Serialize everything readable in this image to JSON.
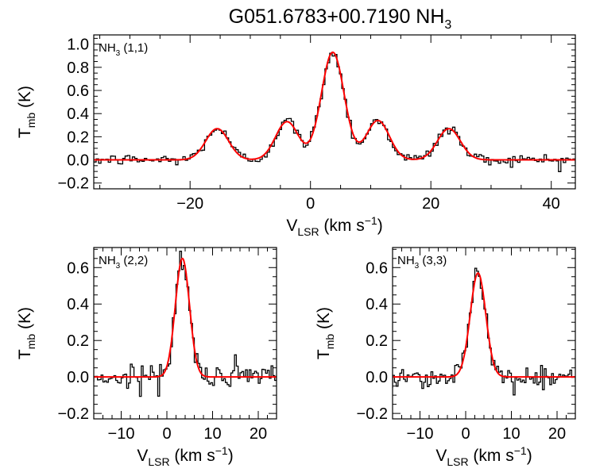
{
  "title": {
    "main": "G051.6783+00.7190 NH",
    "sub": "3"
  },
  "chart_data": [
    {
      "type": "line",
      "id": "p11",
      "annotation": {
        "main": "NH",
        "sub": "3",
        "rest": " (1,1)"
      },
      "xlabel": {
        "main": "V",
        "sub": "LSR",
        "rest": " (km s",
        "sup": "−1",
        "end": ")"
      },
      "ylabel": {
        "main": "T",
        "sub": "mb",
        "rest": " (K)"
      },
      "xlim": [
        -36,
        44
      ],
      "ylim": [
        -0.25,
        1.08
      ],
      "xticks": [
        -20,
        0,
        20,
        40
      ],
      "xtick_labels": [
        "−20",
        "0",
        "20",
        "40"
      ],
      "yticks": [
        -0.2,
        0.0,
        0.2,
        0.4,
        0.6,
        0.8,
        1.0
      ],
      "ytick_labels": [
        "−0.2",
        "0.0",
        "0.2",
        "0.4",
        "0.6",
        "0.8",
        "1.0"
      ],
      "x_minor_step": 5,
      "y_minor_step": 0.05,
      "fit_components": [
        {
          "center": -15.5,
          "amplitude": 0.27,
          "sigma": 1.9
        },
        {
          "center": -3.9,
          "amplitude": 0.33,
          "sigma": 1.9
        },
        {
          "center": 3.7,
          "amplitude": 0.93,
          "sigma": 1.9
        },
        {
          "center": 11.2,
          "amplitude": 0.34,
          "sigma": 1.9
        },
        {
          "center": 23.0,
          "amplitude": 0.27,
          "sigma": 1.9
        }
      ],
      "channel_width": 0.4,
      "noise_rms": 0.025,
      "series": [
        {
          "name": "observed spectrum",
          "style": "histogram",
          "color": "#000000"
        },
        {
          "name": "Gaussian fit",
          "style": "line",
          "color": "#ff0000"
        }
      ]
    },
    {
      "type": "line",
      "id": "p22",
      "annotation": {
        "main": "NH",
        "sub": "3",
        "rest": " (2,2)"
      },
      "xlabel": {
        "main": "V",
        "sub": "LSR",
        "rest": " (km s",
        "sup": "−1",
        "end": ")"
      },
      "ylabel": {
        "main": "T",
        "sub": "mb",
        "rest": " (K)"
      },
      "xlim": [
        -16,
        24
      ],
      "ylim": [
        -0.23,
        0.71
      ],
      "xticks": [
        -10,
        0,
        10,
        20
      ],
      "xtick_labels": [
        "−10",
        "0",
        "10",
        "20"
      ],
      "yticks": [
        -0.2,
        0.0,
        0.2,
        0.4,
        0.6
      ],
      "ytick_labels": [
        "−0.2",
        "0.0",
        "0.2",
        "0.4",
        "0.6"
      ],
      "x_minor_step": 2,
      "y_minor_step": 0.05,
      "fit_components": [
        {
          "center": 3.4,
          "amplitude": 0.65,
          "sigma": 1.55
        }
      ],
      "channel_width": 0.4,
      "noise_rms": 0.035,
      "series": [
        {
          "name": "observed spectrum",
          "style": "histogram",
          "color": "#000000"
        },
        {
          "name": "Gaussian fit",
          "style": "line",
          "color": "#ff0000"
        }
      ]
    },
    {
      "type": "line",
      "id": "p33",
      "annotation": {
        "main": "NH",
        "sub": "3",
        "rest": " (3,3)"
      },
      "xlabel": {
        "main": "V",
        "sub": "LSR",
        "rest": " (km s",
        "sup": "−1",
        "end": ")"
      },
      "ylabel": {
        "main": "T",
        "sub": "mb",
        "rest": " (K)"
      },
      "xlim": [
        -16,
        24
      ],
      "ylim": [
        -0.23,
        0.71
      ],
      "xticks": [
        -10,
        0,
        10,
        20
      ],
      "xtick_labels": [
        "−10",
        "0",
        "10",
        "20"
      ],
      "yticks": [
        -0.2,
        0.0,
        0.2,
        0.4,
        0.6
      ],
      "ytick_labels": [
        "−0.2",
        "0.0",
        "0.2",
        "0.4",
        "0.6"
      ],
      "x_minor_step": 2,
      "y_minor_step": 0.05,
      "fit_components": [
        {
          "center": 2.7,
          "amplitude": 0.57,
          "sigma": 1.7
        }
      ],
      "channel_width": 0.4,
      "noise_rms": 0.035,
      "series": [
        {
          "name": "observed spectrum",
          "style": "histogram",
          "color": "#000000"
        },
        {
          "name": "Gaussian fit",
          "style": "line",
          "color": "#ff0000"
        }
      ]
    }
  ]
}
